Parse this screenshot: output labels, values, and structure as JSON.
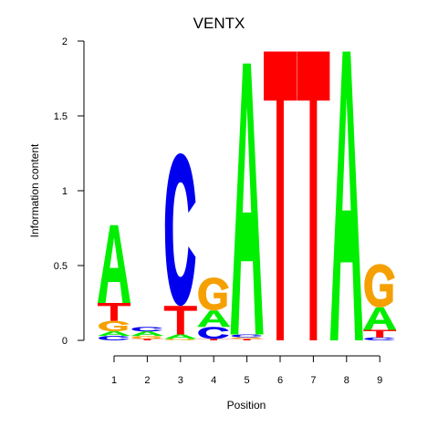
{
  "chart_data": {
    "type": "sequence-logo",
    "title": "VENTX",
    "xlabel": "Position",
    "ylabel": "Information content",
    "ylim": [
      0,
      2
    ],
    "yticks": [
      "0",
      "0.5",
      "1",
      "1.5",
      "2"
    ],
    "positions": [
      "1",
      "2",
      "3",
      "4",
      "5",
      "6",
      "7",
      "8",
      "9"
    ],
    "colors": {
      "A": "#00ee00",
      "C": "#0000ee",
      "G": "#f5a000",
      "T": "#ff0000"
    },
    "stacks": [
      {
        "position": "1",
        "letters": [
          {
            "base": "C",
            "height": 0.03
          },
          {
            "base": "A",
            "height": 0.03
          },
          {
            "base": "G",
            "height": 0.07
          },
          {
            "base": "T",
            "height": 0.12
          },
          {
            "base": "A",
            "height": 0.52
          }
        ]
      },
      {
        "position": "2",
        "letters": [
          {
            "base": "T",
            "height": 0.01
          },
          {
            "base": "G",
            "height": 0.02
          },
          {
            "base": "A",
            "height": 0.03
          },
          {
            "base": "C",
            "height": 0.03
          }
        ]
      },
      {
        "position": "3",
        "letters": [
          {
            "base": "G",
            "height": 0.01
          },
          {
            "base": "A",
            "height": 0.03
          },
          {
            "base": "T",
            "height": 0.19
          },
          {
            "base": "C",
            "height": 1.02
          }
        ]
      },
      {
        "position": "4",
        "letters": [
          {
            "base": "T",
            "height": 0.01
          },
          {
            "base": "C",
            "height": 0.08
          },
          {
            "base": "A",
            "height": 0.11
          },
          {
            "base": "G",
            "height": 0.22
          }
        ]
      },
      {
        "position": "5",
        "letters": [
          {
            "base": "T",
            "height": 0.01
          },
          {
            "base": "G",
            "height": 0.01
          },
          {
            "base": "C",
            "height": 0.02
          },
          {
            "base": "A",
            "height": 1.81
          }
        ]
      },
      {
        "position": "6",
        "letters": [
          {
            "base": "T",
            "height": 1.93
          }
        ]
      },
      {
        "position": "7",
        "letters": [
          {
            "base": "T",
            "height": 1.93
          }
        ]
      },
      {
        "position": "8",
        "letters": [
          {
            "base": "A",
            "height": 1.93
          }
        ]
      },
      {
        "position": "9",
        "letters": [
          {
            "base": "C",
            "height": 0.02
          },
          {
            "base": "T",
            "height": 0.05
          },
          {
            "base": "A",
            "height": 0.15
          },
          {
            "base": "G",
            "height": 0.29
          }
        ]
      }
    ]
  }
}
